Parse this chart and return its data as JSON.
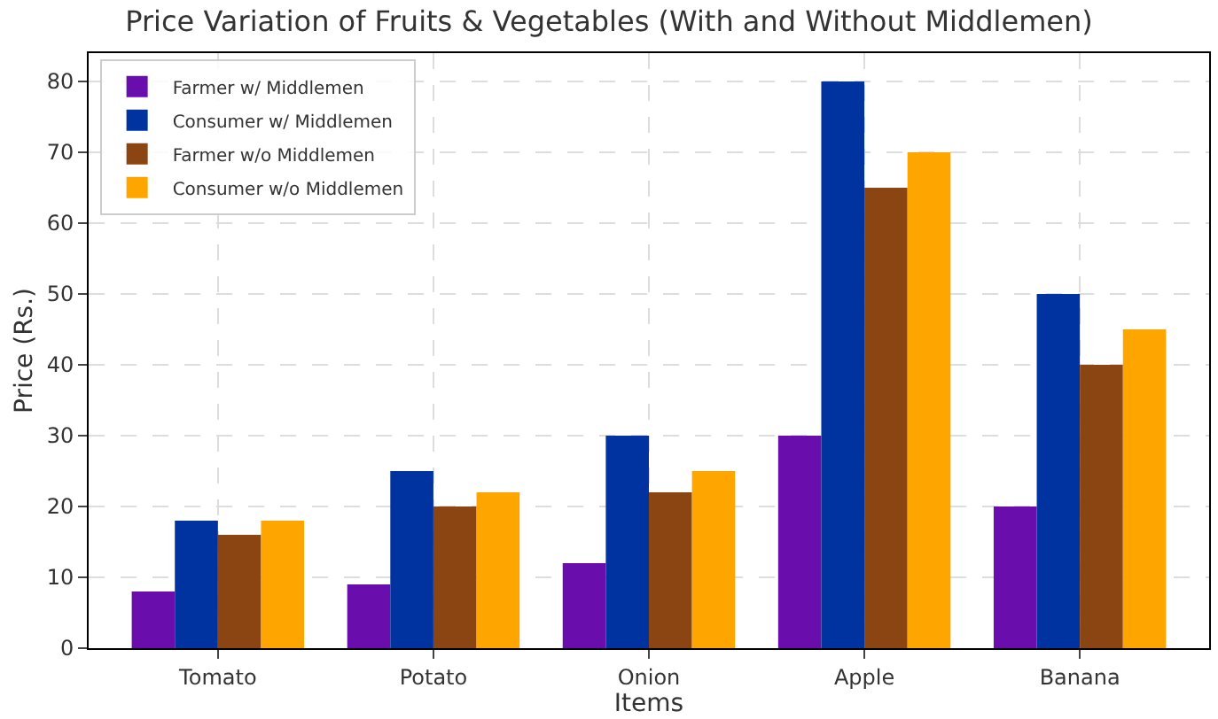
{
  "chart_data": {
    "type": "bar",
    "title": "Price Variation of Fruits & Vegetables (With and Without Middlemen)",
    "xlabel": "Items",
    "ylabel": "Price (Rs.)",
    "categories": [
      "Tomato",
      "Potato",
      "Onion",
      "Apple",
      "Banana"
    ],
    "series": [
      {
        "name": "Farmer w/ Middlemen",
        "color": "#6a0dad",
        "values": [
          8,
          9,
          12,
          30,
          20
        ]
      },
      {
        "name": "Consumer w/ Middlemen",
        "color": "#0033a0",
        "values": [
          18,
          25,
          30,
          80,
          50
        ]
      },
      {
        "name": "Farmer w/o Middlemen",
        "color": "#8b4513",
        "values": [
          16,
          20,
          22,
          65,
          40
        ]
      },
      {
        "name": "Consumer w/o Middlemen",
        "color": "#ffa500",
        "values": [
          18,
          22,
          25,
          70,
          45
        ]
      }
    ],
    "ylim": [
      0,
      84
    ],
    "yticks": [
      0,
      10,
      20,
      30,
      40,
      50,
      60,
      70,
      80
    ],
    "grid": true,
    "legend": "top left"
  }
}
